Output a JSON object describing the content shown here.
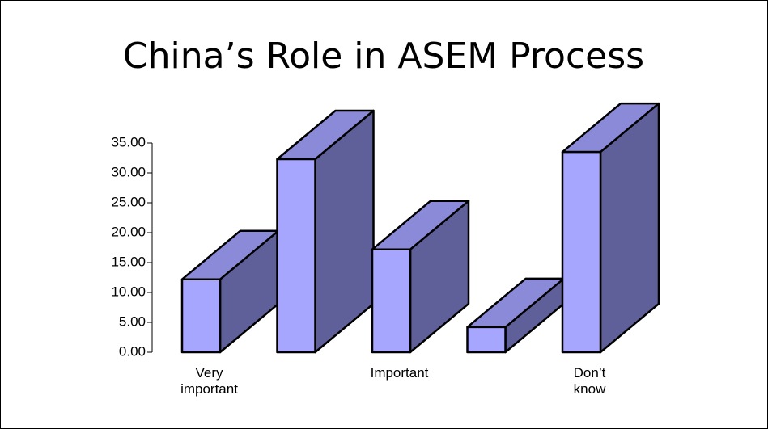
{
  "chart_data": {
    "type": "bar3d",
    "title": "China’s Role in ASEM Process",
    "categories": [
      "Very important",
      null,
      "Important",
      null,
      "Don’t know"
    ],
    "values": [
      12.2,
      32.3,
      17.2,
      4.2,
      33.5
    ],
    "colors": {
      "front": "#a6a6ff",
      "top": "#8a8ad8",
      "side": "#5f5f9a"
    },
    "ylim": [
      0,
      35
    ],
    "yticks": [
      {
        "value": 0,
        "label": "0.00"
      },
      {
        "value": 5,
        "label": "5.00"
      },
      {
        "value": 10,
        "label": "10.00"
      },
      {
        "value": 15,
        "label": "15.00"
      },
      {
        "value": 20,
        "label": "20.00"
      },
      {
        "value": 25,
        "label": "25.00"
      },
      {
        "value": 30,
        "label": "30.00"
      },
      {
        "value": 35,
        "label": "35.00"
      }
    ]
  }
}
